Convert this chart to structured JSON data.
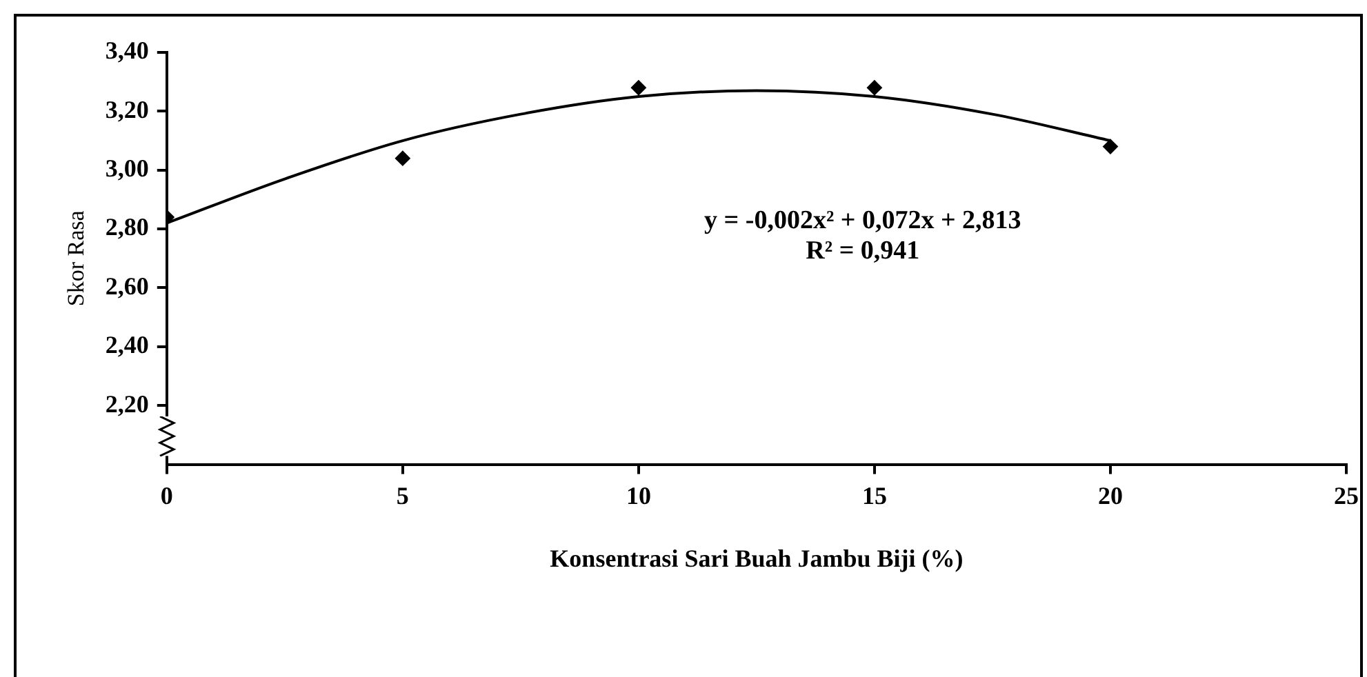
{
  "chart_data": {
    "type": "scatter",
    "xlabel": "Konsentrasi Sari Buah Jambu Biji (%)",
    "ylabel": "Skor Rasa",
    "x": [
      0,
      5,
      10,
      15,
      20
    ],
    "series": [
      {
        "color": "#000000",
        "marker": "diamond",
        "values": [
          2.84,
          3.04,
          3.28,
          3.28,
          3.08
        ]
      },
      {
        "type": "line",
        "color": "#000000",
        "marker": "none",
        "line_style": "solid",
        "x": [
          0,
          2.5,
          5,
          7.5,
          10,
          12.5,
          15,
          17.5,
          20
        ],
        "values": [
          2.82,
          2.97,
          3.1,
          3.19,
          3.25,
          3.27,
          3.25,
          3.19,
          3.1
        ]
      }
    ],
    "xlim": [
      0,
      25
    ],
    "xticks": [
      0,
      5,
      10,
      15,
      20,
      25
    ],
    "ylim": [
      2,
      3.4
    ],
    "yticks": [
      {
        "value": 2.2,
        "label": "2,20"
      },
      {
        "value": 2.4,
        "label": "2,40"
      },
      {
        "value": 2.6,
        "label": "2,60"
      },
      {
        "value": 2.8,
        "label": "2,80"
      },
      {
        "value": 3,
        "label": "3,00"
      },
      {
        "value": 3.2,
        "label": "3,20"
      },
      {
        "value": 3.4,
        "label": "3,40"
      }
    ],
    "grid": false,
    "legend": false,
    "annotations": [
      "y = -0,002x² + 0,072x + 2,813",
      "R² = 0,941"
    ]
  }
}
